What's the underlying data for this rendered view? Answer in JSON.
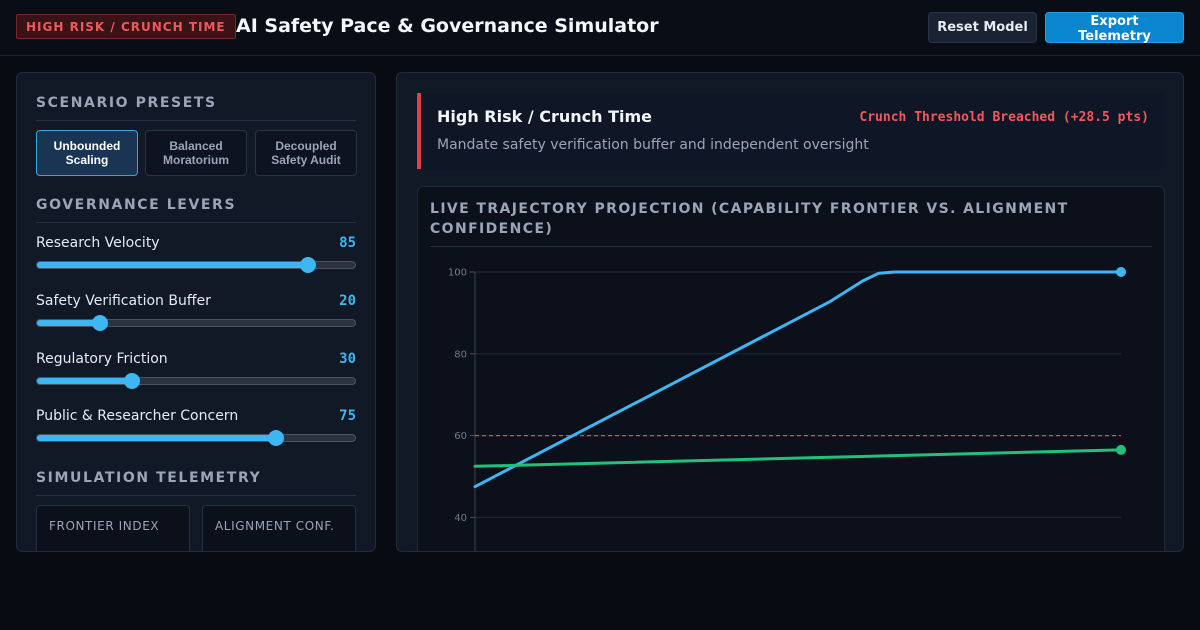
{
  "header": {
    "risk_badge": "HIGH RISK / CRUNCH TIME",
    "title": "AI Safety Pace & Governance Simulator",
    "reset_label": "Reset Model",
    "export_label": "Export Telemetry"
  },
  "presets": {
    "title": "SCENARIO PRESETS",
    "items": [
      {
        "label": "Unbounded Scaling",
        "active": true
      },
      {
        "label": "Balanced Moratorium",
        "active": false
      },
      {
        "label": "Decoupled Safety Audit",
        "active": false
      }
    ]
  },
  "levers": {
    "title": "GOVERNANCE LEVERS",
    "items": [
      {
        "label": "Research Velocity",
        "value": 85
      },
      {
        "label": "Safety Verification Buffer",
        "value": 20
      },
      {
        "label": "Regulatory Friction",
        "value": 30
      },
      {
        "label": "Public & Researcher Concern",
        "value": 75
      }
    ]
  },
  "telemetry": {
    "title": "SIMULATION TELEMETRY",
    "frontier_label": "FRONTIER INDEX",
    "alignment_label": "ALIGNMENT CONF."
  },
  "alert": {
    "title": "High Risk / Crunch Time",
    "status": "Crunch Threshold Breached (+28.5 pts)",
    "subtitle": "Mandate safety verification buffer and independent oversight"
  },
  "colors": {
    "accent": "#3db6f2",
    "danger": "#f0585b",
    "alignment": "#22c07a"
  },
  "chart_data": {
    "type": "line",
    "title": "LIVE TRAJECTORY PROJECTION (CAPABILITY FRONTIER VS. ALIGNMENT CONFIDENCE)",
    "y_ticks": [
      100,
      80,
      60,
      40
    ],
    "ylim": [
      34,
      100
    ],
    "x": [
      0,
      0.55,
      0.6,
      0.625,
      0.65,
      1.0
    ],
    "series": [
      {
        "key": "frontier",
        "color": "#3db6f2",
        "values": [
          47.5,
          92.8,
          97.8,
          99.7,
          100,
          100
        ]
      },
      {
        "key": "alignment",
        "color": "#22c07a",
        "values": [
          52.5,
          54.7,
          54.9,
          55.0,
          55.1,
          56.5
        ]
      }
    ],
    "threshold": 60,
    "threshold_color": "#f0585b",
    "grid": true
  }
}
